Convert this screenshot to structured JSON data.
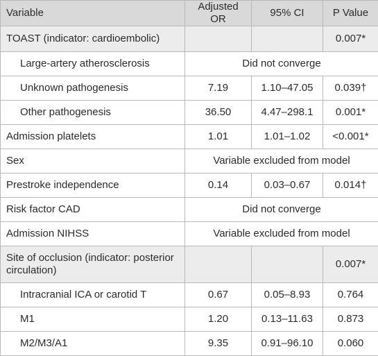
{
  "table": {
    "header": [
      "Variable",
      "Adjusted OR",
      "95% CI",
      "P Value"
    ],
    "rows": [
      {
        "label": "TOAST (indicator: cardioembolic)",
        "p": "0.007*",
        "items": [
          {
            "label": "Large-artery atherosclerosis",
            "merged": "Did not converge"
          },
          {
            "label": "Unknown pathogenesis",
            "or": "7.19",
            "ci": "1.10–47.05",
            "p": "0.039†"
          },
          {
            "label": "Other pathogenesis",
            "or": "36.50",
            "ci": "4.47–298.1",
            "p": "0.001*"
          }
        ]
      },
      {
        "label": "Admission platelets",
        "or": "1.01",
        "ci": "1.01–1.02",
        "p": "<0.001*"
      },
      {
        "label": "Sex",
        "merged": "Variable excluded from model"
      },
      {
        "label": "Prestroke independence",
        "or": "0.14",
        "ci": "0.03–0.67",
        "p": "0.014†"
      },
      {
        "label": "Risk factor CAD",
        "merged": "Did not converge"
      },
      {
        "label": "Admission NIHSS",
        "merged": "Variable excluded from model"
      },
      {
        "label": "Site of occlusion (indicator: posterior circulation)",
        "p": "0.007*",
        "items": [
          {
            "label": "Intracranial ICA or carotid T",
            "or": "0.67",
            "ci": "0.05–8.93",
            "p": "0.764"
          },
          {
            "label": "M1",
            "or": "1.20",
            "ci": "0.13–11.63",
            "p": "0.873"
          },
          {
            "label": "M2/M3/A1",
            "or": "9.35",
            "ci": "0.91–96.10",
            "p": "0.060"
          }
        ]
      }
    ]
  }
}
